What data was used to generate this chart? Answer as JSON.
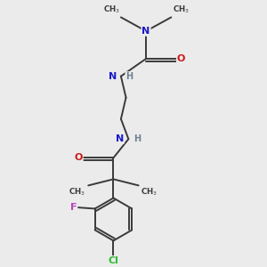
{
  "bg_color": "#ebebeb",
  "bond_color": "#3a3a3a",
  "atom_colors": {
    "N": "#1a1acc",
    "O": "#cc1a1a",
    "F": "#bb44bb",
    "Cl": "#33bb33",
    "H_gray": "#708090",
    "C": "#3a3a3a"
  },
  "figsize": [
    3.0,
    3.0
  ],
  "dpi": 100
}
